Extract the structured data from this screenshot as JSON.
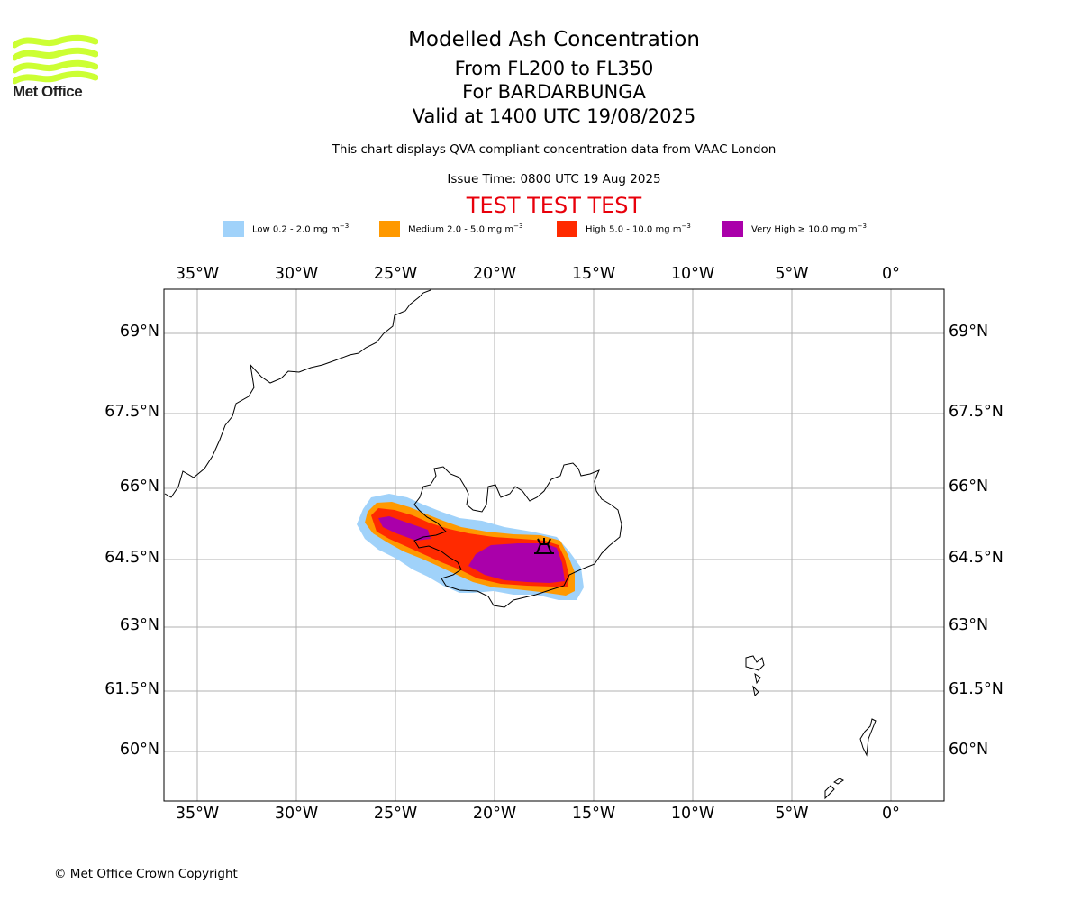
{
  "brand": {
    "name": "Met Office",
    "logo_color": "#ccff33"
  },
  "header": {
    "title": "Modelled Ash Concentration",
    "flight_levels": "From FL200 to FL350",
    "volcano": "For BARDARBUNGA",
    "valid": "Valid at 1400 UTC 19/08/2025",
    "description": "This chart displays QVA compliant concentration data from VAAC London",
    "issue_time": "Issue Time: 0800 UTC 19 Aug 2025",
    "test_banner": "TEST TEST TEST"
  },
  "legend": [
    {
      "label": "Low 0.2 - 2.0 mg m",
      "exp": "−3",
      "color": "#a0d2fa"
    },
    {
      "label": "Medium 2.0 - 5.0 mg m",
      "exp": "−3",
      "color": "#ff9900"
    },
    {
      "label": "High 5.0 - 10.0 mg m",
      "exp": "−3",
      "color": "#ff2a00"
    },
    {
      "label": "Very High  ≥  10.0 mg m",
      "exp": "−3",
      "color": "#aa00aa"
    }
  ],
  "map": {
    "lon_ticks": [
      "35°W",
      "30°W",
      "25°W",
      "20°W",
      "15°W",
      "10°W",
      "5°W",
      "0°"
    ],
    "lat_ticks": [
      "69°N",
      "67.5°N",
      "66°N",
      "64.5°N",
      "63°N",
      "61.5°N",
      "60°N"
    ],
    "grid_color": "#b0b0b0",
    "coastline_color": "#000000"
  },
  "footer": {
    "copyright": "© Met Office Crown Copyright"
  }
}
